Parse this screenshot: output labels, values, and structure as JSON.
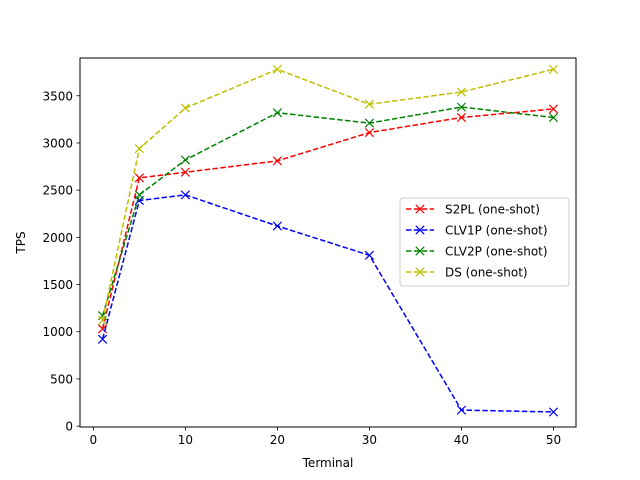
{
  "chart_data": {
    "type": "line",
    "title": "",
    "xlabel": "Terminal",
    "ylabel": "TPS",
    "xlim": [
      -1.45,
      52.45
    ],
    "ylim": [
      -9.3,
      3900
    ],
    "xticks": [
      0,
      10,
      20,
      30,
      40,
      50
    ],
    "yticks": [
      0,
      500,
      1000,
      1500,
      2000,
      2500,
      3000,
      3500
    ],
    "x": [
      1,
      5,
      10,
      20,
      30,
      40,
      50
    ],
    "grid": false,
    "legend_position": "center-right",
    "line_style": "dashed",
    "marker": "x",
    "series": [
      {
        "name": "S2PL (one-shot)",
        "color": "#ff0000",
        "values": [
          1030,
          2630,
          2690,
          2810,
          3110,
          3270,
          3360
        ]
      },
      {
        "name": "CLV1P (one-shot)",
        "color": "#0000ff",
        "values": [
          920,
          2390,
          2450,
          2120,
          1810,
          170,
          150
        ]
      },
      {
        "name": "CLV2P (one-shot)",
        "color": "#008000",
        "values": [
          1170,
          2450,
          2820,
          3320,
          3210,
          3380,
          3270
        ]
      },
      {
        "name": "DS (one-shot)",
        "color": "#bfbf00",
        "values": [
          1120,
          2940,
          3370,
          3780,
          3410,
          3540,
          3780
        ]
      }
    ]
  }
}
